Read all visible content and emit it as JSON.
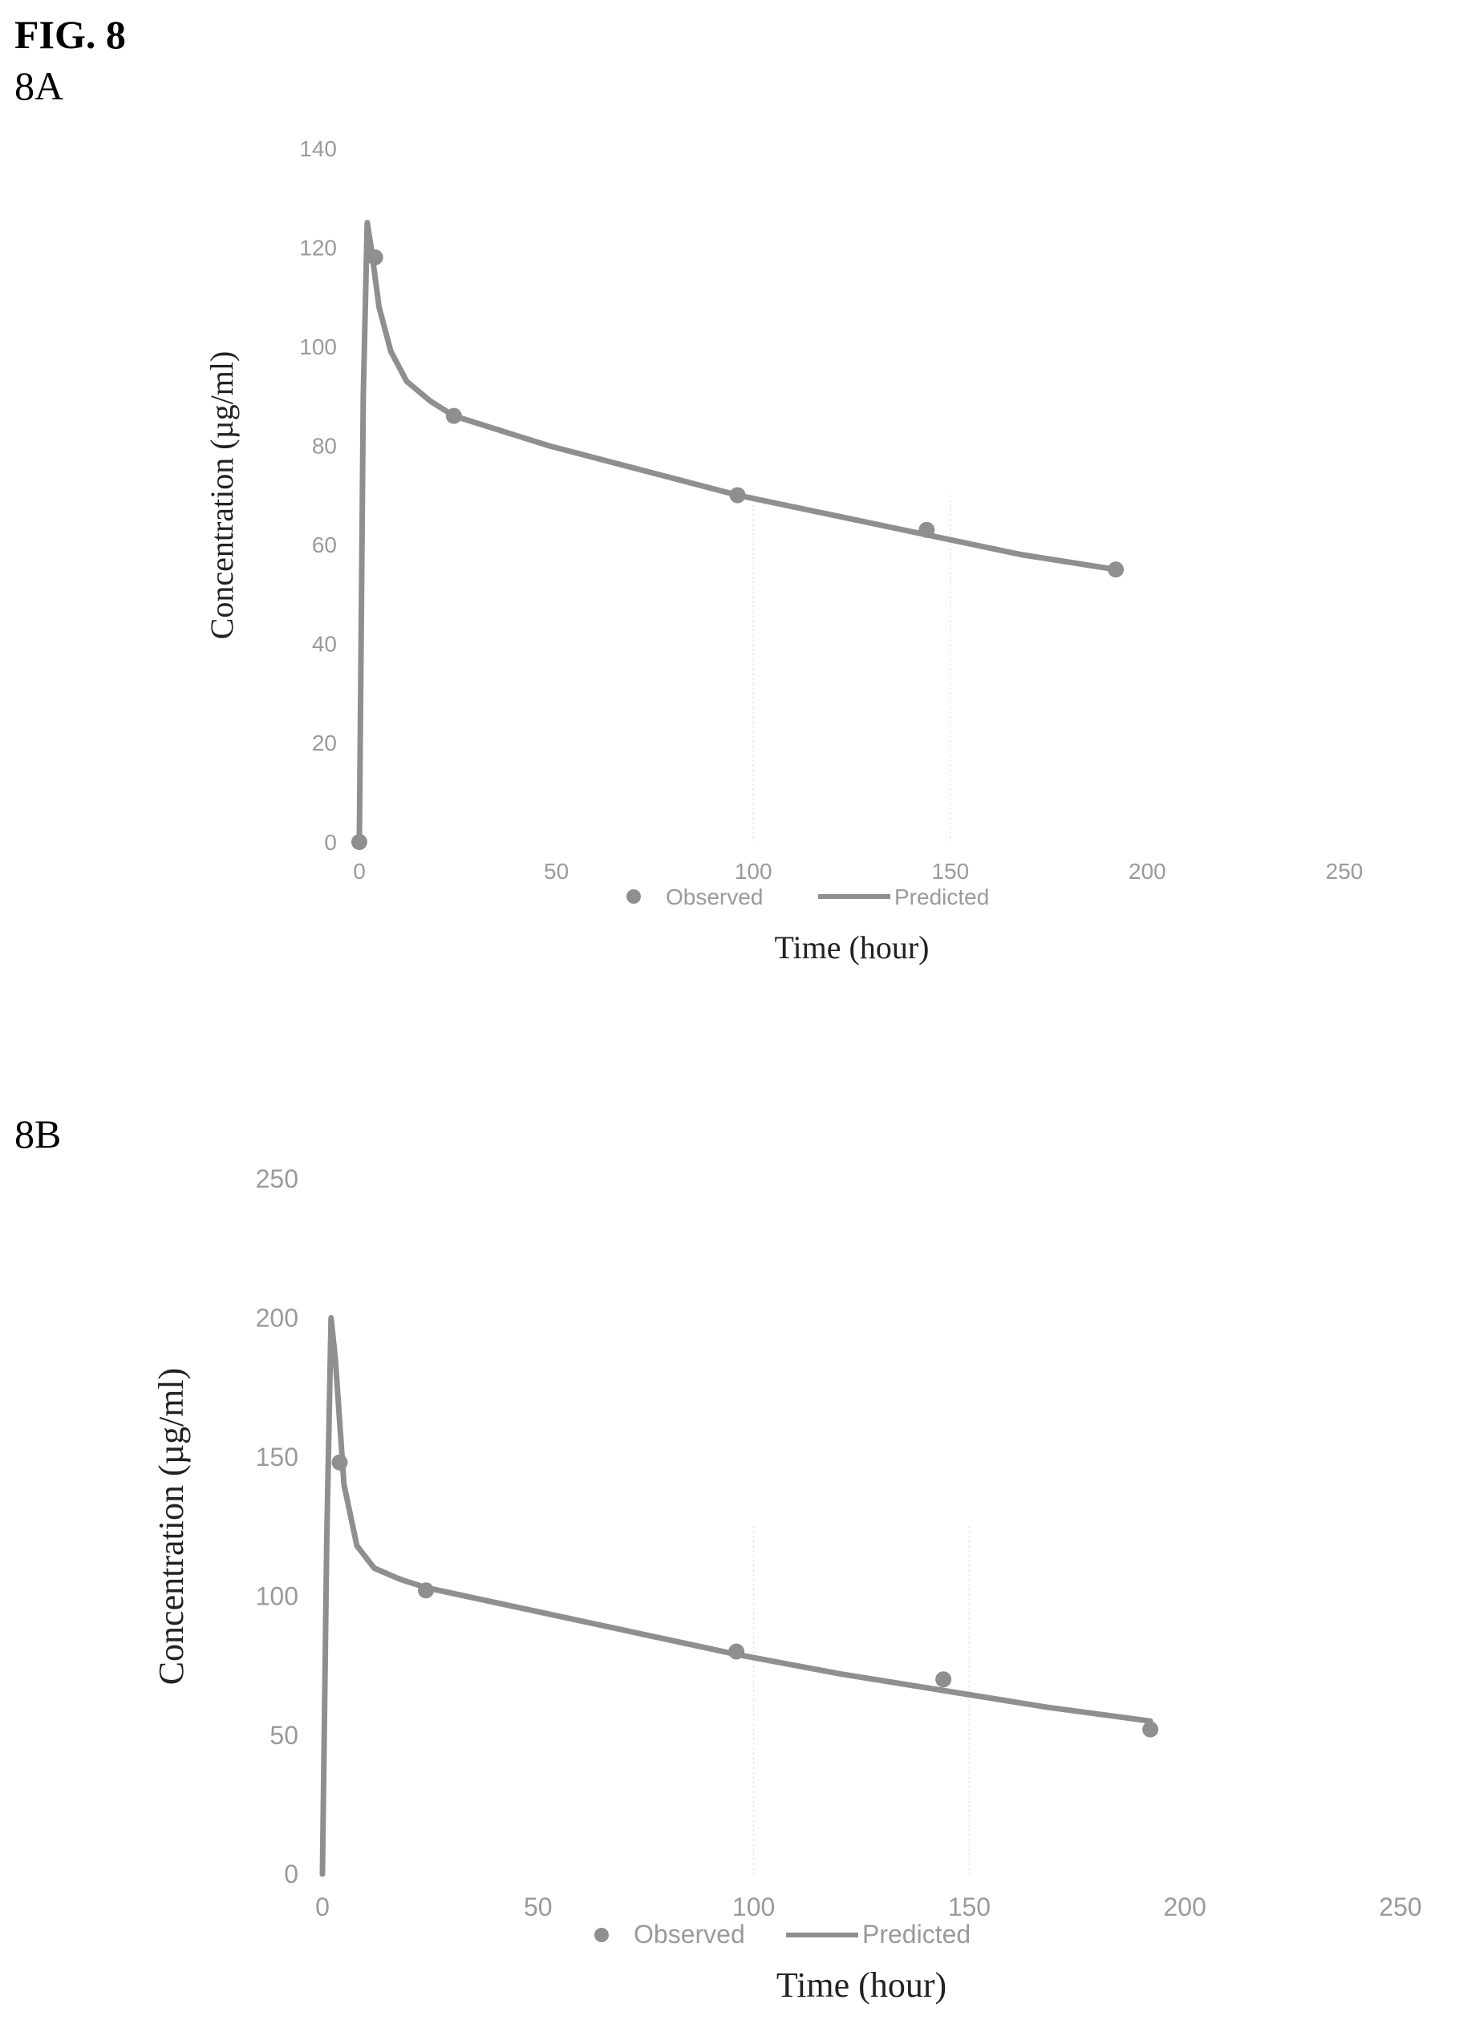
{
  "figure": {
    "title": "FIG. 8"
  },
  "colors": {
    "series": "#8f8f8f",
    "tick": "#9a9a9a",
    "grid": "#dddddd"
  },
  "chart_data": [
    {
      "panel": "8A",
      "type": "line",
      "xlabel": "Time (hour)",
      "ylabel": "Concentration (µg/ml)",
      "xlim": [
        0,
        250
      ],
      "ylim": [
        0,
        140
      ],
      "xticks": [
        0,
        50,
        100,
        150,
        200,
        250
      ],
      "yticks": [
        0,
        20,
        40,
        60,
        80,
        100,
        120,
        140
      ],
      "legend": {
        "placement": "bottom",
        "entries": [
          "Observed",
          "Predicted"
        ]
      },
      "series": [
        {
          "name": "Observed",
          "kind": "scatter",
          "x": [
            0,
            4,
            24,
            96,
            144,
            192
          ],
          "y": [
            0,
            118,
            86,
            70,
            63,
            55
          ]
        },
        {
          "name": "Predicted",
          "kind": "line",
          "x": [
            0,
            1,
            2,
            3,
            5,
            8,
            12,
            18,
            24,
            48,
            72,
            96,
            120,
            144,
            168,
            192
          ],
          "y": [
            0,
            90,
            125,
            120,
            108,
            99,
            93,
            89,
            86,
            80,
            75,
            70,
            66,
            62,
            58,
            55
          ]
        }
      ]
    },
    {
      "panel": "8B",
      "type": "line",
      "xlabel": "Time (hour)",
      "ylabel": "Concentration (µg/ml)",
      "xlim": [
        0,
        250
      ],
      "ylim": [
        0,
        250
      ],
      "xticks": [
        0,
        50,
        100,
        150,
        200,
        250
      ],
      "yticks": [
        0,
        50,
        100,
        150,
        200,
        250
      ],
      "legend": {
        "placement": "bottom",
        "entries": [
          "Observed",
          "Predicted"
        ]
      },
      "series": [
        {
          "name": "Observed",
          "kind": "scatter",
          "x": [
            4,
            24,
            96,
            144,
            192
          ],
          "y": [
            148,
            102,
            80,
            70,
            52
          ]
        },
        {
          "name": "Predicted",
          "kind": "line",
          "x": [
            0,
            1,
            2,
            3,
            5,
            8,
            12,
            18,
            24,
            48,
            72,
            96,
            120,
            144,
            168,
            192
          ],
          "y": [
            0,
            120,
            200,
            185,
            140,
            118,
            110,
            106,
            103,
            95,
            87,
            79,
            72,
            66,
            60,
            55
          ]
        }
      ]
    }
  ]
}
